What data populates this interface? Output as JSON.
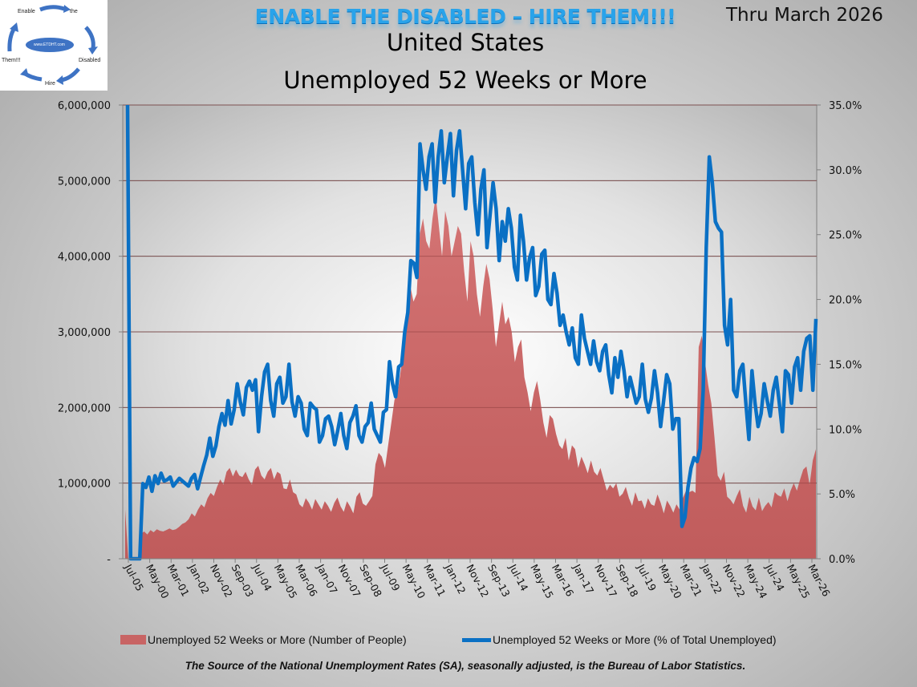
{
  "logo": {
    "words": [
      "Enable",
      "the",
      "Disabled",
      "Hire",
      "Them!!!"
    ],
    "center_text": "www.ETDHT.com"
  },
  "header": {
    "banner": "ENABLE THE DISABLED – HIRE THEM!!!",
    "title_line1": "United States",
    "title_line2": "Unemployed 52 Weeks or More",
    "period": "Thru March 2026"
  },
  "colors": {
    "area": "#d47474",
    "area_dark": "#c05c5c",
    "line": "#0a70c4",
    "grid": "#6e6e6e"
  },
  "chart_data": {
    "type": "area+line",
    "title": "United States Unemployed 52 Weeks or More",
    "x_tick_labels": [
      "Jul-05",
      "May-00",
      "Mar-01",
      "Jan-02",
      "Nov-02",
      "Sep-03",
      "Jul-04",
      "May-05",
      "Mar-06",
      "Jan-07",
      "Nov-07",
      "Sep-08",
      "Jul-09",
      "May-10",
      "Mar-11",
      "Jan-12",
      "Nov-12",
      "Sep-13",
      "Jul-14",
      "May-15",
      "Mar-16",
      "Jan-17",
      "Nov-17",
      "Sep-18",
      "Jul-19",
      "May-20",
      "Mar-21",
      "Jan-22",
      "Nov-22",
      "May-24",
      "Jul-24",
      "May-25",
      "Mar-26"
    ],
    "y_left": {
      "min": 0,
      "max": 6000000,
      "ticks": [
        0,
        1000000,
        2000000,
        3000000,
        4000000,
        5000000,
        6000000
      ],
      "tick_labels": [
        "-",
        "1,000,000",
        "2,000,000",
        "3,000,000",
        "4,000,000",
        "5,000,000",
        "6,000,000"
      ]
    },
    "y_right": {
      "min": 0,
      "max": 35,
      "ticks": [
        0,
        5,
        10,
        15,
        20,
        25,
        30,
        35
      ],
      "tick_labels": [
        "0.0%",
        "5.0%",
        "10.0%",
        "15.0%",
        "20.0%",
        "25.0%",
        "30.0%",
        "35.0%"
      ]
    },
    "grid": "horizontal",
    "legend_position": "bottom",
    "series": [
      {
        "name": "Unemployed 52 Weeks or More (Number of People)",
        "type": "area",
        "axis": "left",
        "values": [
          650000,
          0,
          0,
          0,
          0,
          330000,
          360000,
          320000,
          380000,
          350000,
          390000,
          370000,
          360000,
          380000,
          400000,
          380000,
          390000,
          420000,
          460000,
          480000,
          520000,
          600000,
          560000,
          650000,
          720000,
          680000,
          800000,
          870000,
          830000,
          950000,
          1050000,
          980000,
          1150000,
          1200000,
          1090000,
          1180000,
          1100000,
          1080000,
          1150000,
          1050000,
          980000,
          1180000,
          1230000,
          1100000,
          1050000,
          1150000,
          1200000,
          1050000,
          1150000,
          1120000,
          930000,
          920000,
          1050000,
          880000,
          850000,
          720000,
          680000,
          800000,
          740000,
          650000,
          790000,
          720000,
          650000,
          760000,
          700000,
          620000,
          740000,
          810000,
          690000,
          620000,
          760000,
          690000,
          600000,
          820000,
          880000,
          730000,
          700000,
          760000,
          830000,
          1250000,
          1400000,
          1350000,
          1200000,
          1500000,
          1800000,
          2100000,
          2200000,
          2500000,
          2800000,
          3300000,
          3600000,
          3400000,
          3500000,
          4300000,
          4500000,
          4200000,
          4100000,
          4500000,
          4800000,
          4400000,
          4000000,
          4600000,
          4400000,
          4000000,
          4200000,
          4400000,
          4300000,
          3800000,
          3400000,
          4200000,
          4000000,
          3500000,
          3200000,
          3600000,
          3900000,
          3700000,
          3300000,
          2800000,
          3100000,
          3400000,
          3100000,
          3200000,
          3000000,
          2600000,
          2800000,
          2900000,
          2400000,
          2200000,
          1950000,
          2200000,
          2350000,
          2100000,
          1800000,
          1600000,
          1900000,
          1850000,
          1650000,
          1500000,
          1450000,
          1600000,
          1300000,
          1500000,
          1450000,
          1200000,
          1350000,
          1250000,
          1130000,
          1300000,
          1150000,
          1100000,
          1200000,
          1050000,
          900000,
          980000,
          930000,
          1000000,
          820000,
          860000,
          950000,
          800000,
          700000,
          880000,
          760000,
          770000,
          660000,
          800000,
          720000,
          700000,
          850000,
          740000,
          600000,
          770000,
          700000,
          610000,
          720000,
          650000,
          800000,
          900000,
          880000,
          900000,
          870000,
          2800000,
          2950000,
          2600000,
          2300000,
          2050000,
          1600000,
          1100000,
          1030000,
          1150000,
          820000,
          780000,
          720000,
          830000,
          920000,
          700000,
          610000,
          820000,
          690000,
          640000,
          810000,
          630000,
          700000,
          750000,
          680000,
          880000,
          840000,
          820000,
          930000,
          760000,
          900000,
          1000000,
          900000,
          1050000,
          1180000,
          1220000,
          980000,
          1300000,
          1450000
        ],
        "color": "#d47474"
      },
      {
        "name": "Unemployed 52 Weeks or More (% of Total Unemployed)",
        "type": "line",
        "axis": "right",
        "values": [
          35.0,
          0.0,
          0.0,
          0.0,
          0.0,
          5.8,
          5.5,
          6.3,
          5.2,
          6.4,
          5.8,
          6.6,
          6.0,
          6.1,
          6.3,
          5.6,
          5.9,
          6.2,
          6.0,
          5.8,
          5.6,
          6.2,
          6.5,
          5.4,
          6.3,
          7.2,
          8.0,
          9.3,
          7.9,
          8.7,
          10.2,
          11.2,
          10.3,
          12.2,
          10.4,
          11.5,
          13.5,
          12.1,
          11.1,
          13.2,
          13.7,
          13.0,
          13.8,
          9.8,
          12.5,
          14.4,
          15.0,
          12.2,
          11.0,
          13.5,
          14.0,
          12.0,
          12.5,
          15.0,
          12.1,
          11.0,
          12.5,
          12.0,
          10.0,
          9.5,
          12.0,
          11.7,
          11.5,
          9.0,
          9.5,
          10.8,
          11.0,
          10.2,
          8.8,
          9.9,
          11.2,
          9.5,
          8.5,
          10.5,
          11.0,
          11.8,
          9.5,
          9.0,
          10.2,
          10.5,
          12.0,
          10.0,
          9.5,
          9.0,
          11.3,
          11.5,
          15.2,
          13.5,
          12.5,
          14.8,
          15.0,
          17.5,
          19.0,
          23.0,
          22.8,
          21.7,
          32.0,
          30.0,
          28.5,
          31.0,
          32.0,
          27.5,
          31.0,
          33.0,
          29.0,
          31.0,
          32.8,
          28.0,
          31.5,
          33.0,
          30.0,
          27.0,
          30.5,
          31.0,
          27.5,
          25.0,
          28.5,
          30.0,
          24.0,
          26.5,
          29.0,
          27.0,
          23.0,
          26.0,
          24.5,
          27.0,
          25.5,
          22.5,
          21.5,
          26.5,
          24.5,
          21.5,
          23.2,
          24.0,
          20.3,
          21.0,
          23.5,
          23.8,
          20.0,
          19.6,
          22.0,
          20.5,
          18.0,
          18.8,
          17.5,
          16.5,
          17.8,
          15.5,
          15.0,
          18.8,
          17.0,
          16.0,
          15.0,
          16.8,
          15.2,
          14.5,
          16.0,
          16.5,
          14.2,
          12.8,
          15.5,
          14.0,
          16.0,
          14.5,
          12.5,
          14.0,
          13.0,
          12.0,
          12.5,
          15.0,
          12.3,
          11.3,
          12.4,
          14.5,
          12.8,
          10.2,
          12.2,
          14.2,
          13.5,
          10.0,
          10.8,
          10.8,
          2.5,
          3.2,
          5.5,
          7.0,
          7.8,
          7.5,
          8.5,
          13.0,
          24.0,
          31.0,
          29.0,
          26.0,
          25.5,
          25.2,
          18.0,
          16.5,
          20.0,
          13.0,
          12.5,
          14.5,
          15.0,
          12.0,
          9.2,
          14.5,
          12.0,
          10.2,
          11.2,
          13.5,
          12.2,
          11.0,
          13.0,
          14.0,
          12.0,
          9.8,
          14.5,
          14.2,
          12.0,
          14.8,
          15.5,
          13.0,
          16.0,
          17.0,
          17.2,
          13.0,
          18.5
        ],
        "color": "#0a70c4"
      }
    ]
  },
  "legend": {
    "items": [
      "Unemployed 52 Weeks or More (Number of People)",
      "Unemployed 52 Weeks or More (% of Total Unemployed)"
    ]
  },
  "source": "The Source of the National Unemployment Rates (SA), seasonally adjusted, is the Bureau of Labor Statistics."
}
